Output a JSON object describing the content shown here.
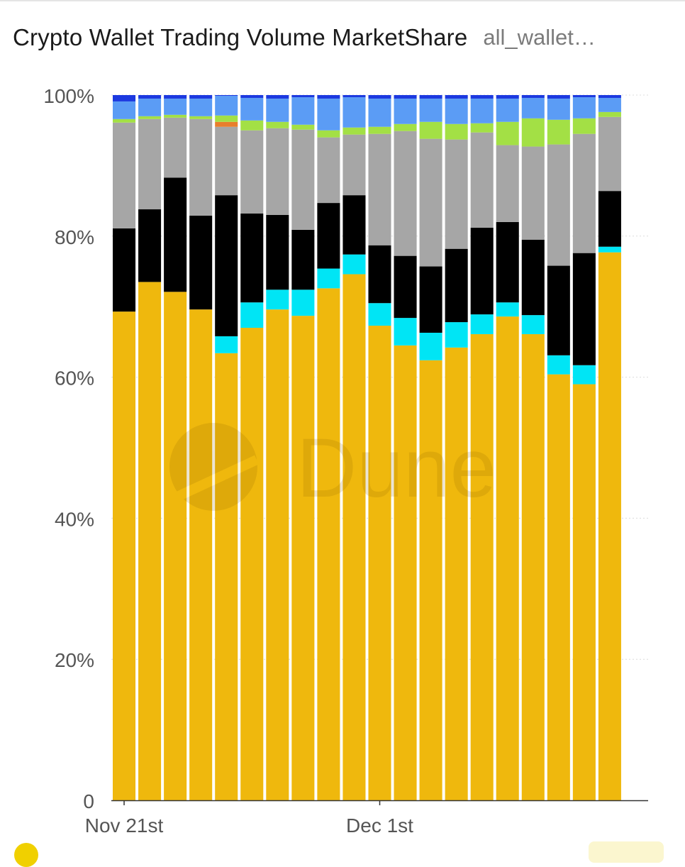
{
  "header": {
    "title": "Crypto Wallet Trading Volume MarketShare",
    "query_name": "all_wallet…"
  },
  "watermark": {
    "text": "Dune"
  },
  "chart_data": {
    "type": "bar",
    "stacked": true,
    "normalized": true,
    "title": "Crypto Wallet Trading Volume MarketShare",
    "xlabel": "",
    "ylabel": "",
    "ylim": [
      0,
      100
    ],
    "y_tick_labels": [
      "0",
      "20%",
      "40%",
      "60%",
      "80%",
      "100%"
    ],
    "y_ticks": [
      0,
      20,
      40,
      60,
      80,
      100
    ],
    "x_tick_labels": [
      {
        "index": 0,
        "label": "Nov 21st"
      },
      {
        "index": 10,
        "label": "Dec 1st"
      }
    ],
    "grid": true,
    "legend": "none",
    "categories": [
      "Nov 21",
      "Nov 22",
      "Nov 23",
      "Nov 24",
      "Nov 25",
      "Nov 26",
      "Nov 27",
      "Nov 28",
      "Nov 29",
      "Nov 30",
      "Dec 1",
      "Dec 2",
      "Dec 3",
      "Dec 4",
      "Dec 5",
      "Dec 6",
      "Dec 7",
      "Dec 8",
      "Dec 9",
      "Dec 10",
      "Dec 11"
    ],
    "series": [
      {
        "color": "#efb80d",
        "values": [
          69.3,
          73.5,
          72.1,
          69.6,
          63.4,
          67.0,
          69.6,
          68.7,
          72.6,
          74.6,
          67.3,
          64.5,
          62.4,
          64.2,
          66.1,
          68.6,
          66.1,
          60.4,
          59.0,
          77.7,
          0
        ]
      },
      {
        "color": "#00e5f5",
        "values": [
          0,
          0,
          0,
          0,
          2.4,
          3.6,
          2.8,
          3.7,
          2.8,
          2.8,
          3.2,
          3.9,
          3.9,
          3.6,
          2.8,
          2.0,
          2.7,
          2.7,
          2.7,
          0.8,
          0
        ]
      },
      {
        "color": "#000000",
        "values": [
          11.8,
          10.3,
          16.2,
          13.3,
          20.0,
          12.6,
          10.6,
          8.5,
          9.3,
          8.4,
          8.2,
          8.8,
          9.4,
          10.4,
          12.3,
          11.4,
          10.7,
          12.7,
          15.9,
          7.9,
          0
        ]
      },
      {
        "color": "#a6a6a6",
        "values": [
          15.0,
          12.8,
          8.5,
          13.7,
          9.7,
          11.8,
          12.3,
          14.2,
          9.3,
          8.6,
          15.8,
          17.7,
          18.1,
          15.5,
          13.5,
          10.9,
          13.2,
          17.2,
          16.9,
          10.5,
          0
        ]
      },
      {
        "color": "#e87e2c",
        "values": [
          0,
          0,
          0,
          0,
          0.7,
          0,
          0,
          0,
          0,
          0,
          0,
          0,
          0,
          0,
          0,
          0,
          0,
          0,
          0,
          0,
          0
        ]
      },
      {
        "color": "#a3e045",
        "values": [
          0.5,
          0.4,
          0.4,
          0.4,
          0.9,
          1.4,
          0.9,
          0.7,
          1.0,
          1.0,
          1.0,
          1.0,
          2.4,
          2.2,
          1.3,
          3.3,
          4.0,
          3.5,
          2.2,
          0.7,
          0
        ]
      },
      {
        "color": "#5b9cf5",
        "values": [
          2.5,
          2.5,
          2.3,
          2.5,
          2.8,
          3.2,
          3.3,
          3.9,
          4.5,
          4.3,
          4.0,
          3.6,
          3.3,
          3.6,
          3.5,
          3.3,
          2.9,
          3.0,
          3.0,
          2.0,
          0
        ]
      },
      {
        "color": "#1c39e0",
        "values": [
          0.9,
          0.5,
          0.5,
          0.5,
          0.1,
          0.4,
          0.5,
          0.3,
          0.5,
          0.3,
          0.5,
          0.5,
          0.5,
          0.5,
          0.5,
          0.5,
          0.4,
          0.5,
          0.3,
          0.4,
          0
        ]
      }
    ]
  }
}
